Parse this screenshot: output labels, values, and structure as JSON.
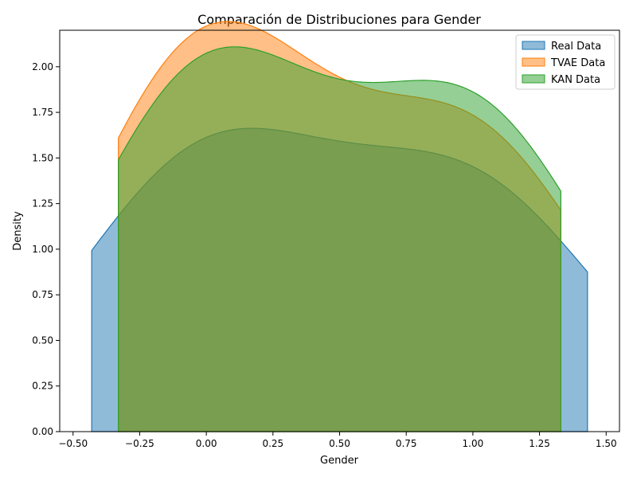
{
  "chart_data": {
    "type": "area",
    "title": "Comparación de Distribuciones para Gender",
    "xlabel": "Gender",
    "ylabel": "Density",
    "xlim": [
      -0.55,
      1.55
    ],
    "ylim": [
      0,
      2.2
    ],
    "xticks": [
      -0.5,
      -0.25,
      0.0,
      0.25,
      0.5,
      0.75,
      1.0,
      1.25,
      1.5
    ],
    "xtick_labels": [
      "−0.50",
      "−0.25",
      "0.00",
      "0.25",
      "0.50",
      "0.75",
      "1.00",
      "1.25",
      "1.50"
    ],
    "yticks": [
      0,
      0.25,
      0.5,
      0.75,
      1.0,
      1.25,
      1.5,
      1.75,
      2.0
    ],
    "ytick_labels": [
      "0.00",
      "0.25",
      "0.50",
      "0.75",
      "1.00",
      "1.25",
      "1.50",
      "1.75",
      "2.00"
    ],
    "grid": false,
    "legend_position": "top-right",
    "series": [
      {
        "name": "Real Data",
        "color": "#1f77b4",
        "fill_opacity": 0.5,
        "x_range": [
          -0.43,
          1.43
        ],
        "peaks": [
          {
            "x": 0.0,
            "density": 1.47
          },
          {
            "x": 1.0,
            "density": 1.29
          }
        ]
      },
      {
        "name": "TVAE Data",
        "color": "#ff7f0e",
        "fill_opacity": 0.5,
        "x_range": [
          -0.33,
          1.33
        ],
        "peaks": [
          {
            "x": 0.0,
            "density": 2.1
          },
          {
            "x": 1.0,
            "density": 1.57
          }
        ]
      },
      {
        "name": "KAN Data",
        "color": "#2ca02c",
        "fill_opacity": 0.5,
        "x_range": [
          -0.33,
          1.33
        ],
        "peaks": [
          {
            "x": 0.0,
            "density": 1.94
          },
          {
            "x": 1.0,
            "density": 1.71
          }
        ]
      }
    ]
  }
}
